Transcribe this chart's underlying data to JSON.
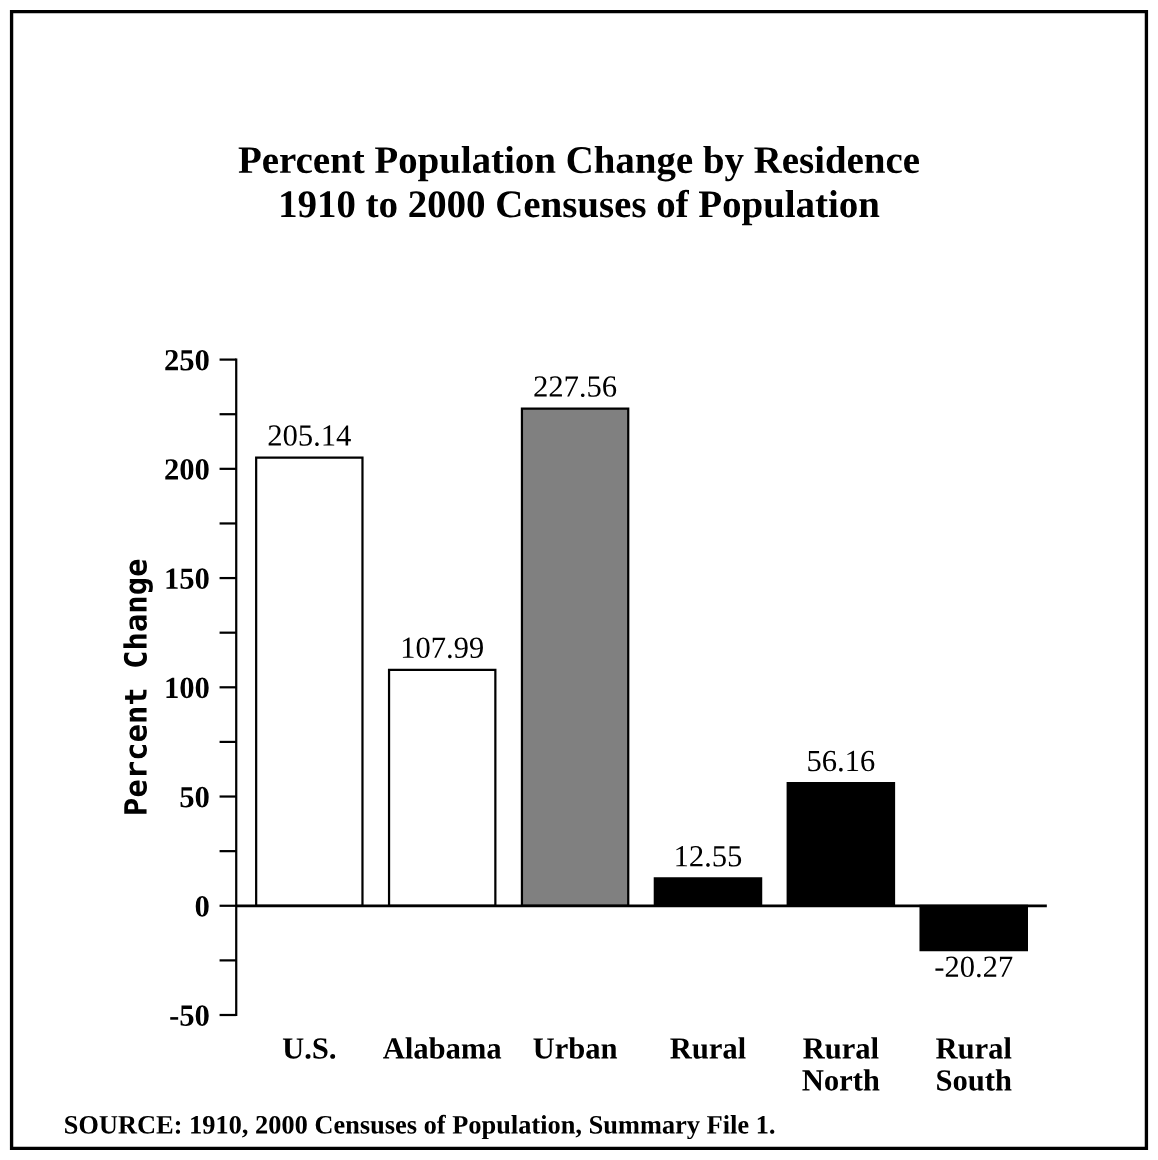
{
  "chart_data": {
    "type": "bar",
    "title": "Percent Population Change by Residence\n1910 to 2000 Censuses of Population",
    "ylabel": "Percent Change",
    "categories": [
      "U.S.",
      "Alabama",
      "Urban",
      "Rural",
      "Rural\nNorth",
      "Rural\nSouth"
    ],
    "values": [
      205.14,
      107.99,
      227.56,
      12.55,
      56.16,
      -20.27
    ],
    "colors": [
      "#ffffff",
      "#ffffff",
      "#808080",
      "#000000",
      "#000000",
      "#000000"
    ],
    "data_labels": true,
    "ylim": [
      -50,
      250
    ],
    "yticks": [
      -50,
      {
        "value": -25,
        "label": null
      },
      0,
      {
        "value": 25,
        "label": null
      },
      50,
      {
        "value": 75,
        "label": null
      },
      100,
      {
        "value": 125,
        "label": null
      },
      150,
      {
        "value": 175,
        "label": null
      },
      200,
      {
        "value": 225,
        "label": null
      },
      250
    ],
    "grid": false,
    "ref_lines": [
      {
        "axis": "y",
        "value": 0,
        "color": "#000000"
      }
    ],
    "legend": false,
    "annotations": [
      "SOURCE: 1910, 2000 Censuses of Population, Summary File 1."
    ]
  }
}
